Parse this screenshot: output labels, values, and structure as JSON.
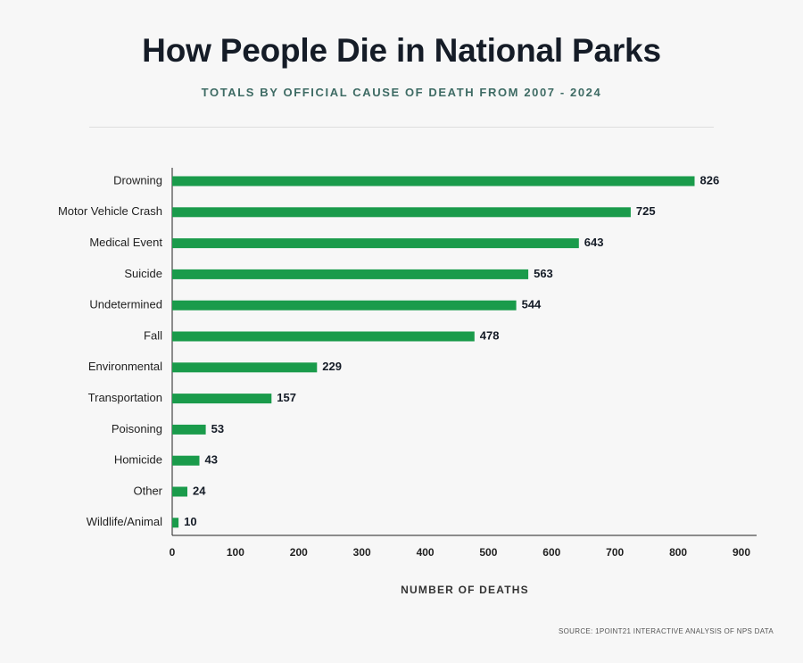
{
  "header": {
    "title": "How People Die in National Parks",
    "subtitle": "TOTALS BY OFFICIAL CAUSE OF DEATH FROM 2007 - 2024"
  },
  "footer": {
    "source": "SOURCE: 1POINT21 INTERACTIVE ANALYSIS OF NPS DATA"
  },
  "chart_data": {
    "type": "bar",
    "orientation": "horizontal",
    "title": "How People Die in National Parks",
    "subtitle": "TOTALS BY OFFICIAL CAUSE OF DEATH FROM 2007 - 2024",
    "xlabel": "NUMBER OF DEATHS",
    "ylabel": "",
    "categories": [
      "Drowning",
      "Motor Vehicle Crash",
      "Medical Event",
      "Suicide",
      "Undetermined",
      "Fall",
      "Environmental",
      "Transportation",
      "Poisoning",
      "Homicide",
      "Other",
      "Wildlife/Animal"
    ],
    "values": [
      826,
      725,
      643,
      563,
      544,
      478,
      229,
      157,
      53,
      43,
      24,
      10
    ],
    "xlim": [
      0,
      900
    ],
    "xticks": [
      0,
      100,
      200,
      300,
      400,
      500,
      600,
      700,
      800,
      900
    ],
    "grid": false,
    "data_labels": true,
    "bar_color": "#1a9b4b"
  }
}
